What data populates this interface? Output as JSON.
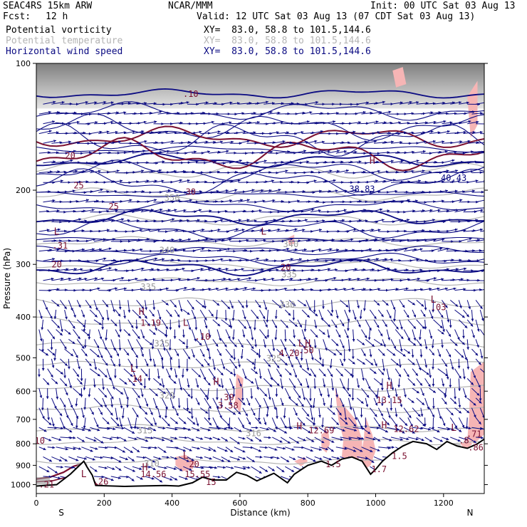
{
  "header": {
    "title": "SEAC4RS 15km ARW",
    "center": "NCAR/MMM",
    "init": "Init: 00 UTC Sat 03 Aug 13",
    "fcst_label": "Fcst:",
    "fcst_value": "12 h",
    "valid": "Valid: 12 UTC Sat 03 Aug 13 (07 CDT Sat 03 Aug 13)",
    "fields": [
      {
        "name": "Potential vorticity",
        "xy": "XY=  83.0, 58.8 to 101.5,144.6"
      },
      {
        "name": "Potential temperature",
        "xy": "XY=  83.0, 58.8 to 101.5,144.6"
      },
      {
        "name": "Horizontal wind speed",
        "xy": "XY=  83.0, 58.8 to 101.5,144.6"
      }
    ]
  },
  "colors": {
    "pv": "#7a1030",
    "theta": "#b4b4b4",
    "wind": "#0a0a82",
    "shade": "#f6b5b5",
    "terrain": "#000000"
  },
  "chart_data": {
    "type": "cross-section",
    "xlabel": "Distance (km)",
    "ylabel": "Pressure (hPa)",
    "x_end_labels": {
      "left": "S",
      "right": "N"
    },
    "xlim": [
      0,
      1320
    ],
    "ylim": [
      1050,
      100
    ],
    "y_scale": "log",
    "x_ticks": [
      0,
      200,
      400,
      600,
      800,
      1000,
      1200
    ],
    "y_ticks": [
      100,
      200,
      300,
      400,
      500,
      600,
      700,
      800,
      900,
      1000
    ],
    "theta_contours": [
      {
        "label": "310",
        "x": 340,
        "p": 905
      },
      {
        "label": "315",
        "x": 320,
        "p": 755
      },
      {
        "label": "316",
        "x": 640,
        "p": 768
      },
      {
        "label": "320",
        "x": 385,
        "p": 625
      },
      {
        "label": "325",
        "x": 370,
        "p": 470
      },
      {
        "label": "325",
        "x": 700,
        "p": 510
      },
      {
        "label": "330",
        "x": 740,
        "p": 380
      },
      {
        "label": "335",
        "x": 330,
        "p": 345
      },
      {
        "label": "335",
        "x": 745,
        "p": 322
      },
      {
        "label": "340",
        "x": 385,
        "p": 282
      },
      {
        "label": "340",
        "x": 750,
        "p": 273
      },
      {
        "label": "350",
        "x": 400,
        "p": 212
      }
    ],
    "pv_labels": [
      {
        "text": "20",
        "x": 100,
        "p": 168
      },
      {
        "text": "25",
        "x": 125,
        "p": 198
      },
      {
        "text": "25",
        "x": 228,
        "p": 222
      },
      {
        "text": "30",
        "x": 455,
        "p": 205
      },
      {
        "text": ".31",
        "x": 70,
        "p": 275
      },
      {
        "text": "20",
        "x": 60,
        "p": 305
      },
      {
        "text": "20",
        "x": 735,
        "p": 310
      },
      {
        "text": ".10",
        "x": 455,
        "p": 120
      },
      {
        "text": "38.83",
        "x": 960,
        "p": 202
      },
      {
        "text": "40.43",
        "x": 1230,
        "p": 190
      },
      {
        "text": "1.19",
        "x": 337,
        "p": 420
      },
      {
        "text": ".10",
        "x": 490,
        "p": 453
      },
      {
        "text": "4.20",
        "x": 745,
        "p": 495
      },
      {
        "text": ".50",
        "x": 795,
        "p": 488
      },
      {
        "text": ".14",
        "x": 290,
        "p": 570
      },
      {
        "text": ".39",
        "x": 560,
        "p": 630
      },
      {
        "text": "3.58",
        "x": 565,
        "p": 660
      },
      {
        "text": "13.15",
        "x": 1040,
        "p": 640
      },
      {
        "text": ".03",
        "x": 1185,
        "p": 385
      },
      {
        "text": "12.69",
        "x": 840,
        "p": 755
      },
      {
        "text": "12.62",
        "x": 1090,
        "p": 750
      },
      {
        "text": ".71",
        "x": 1290,
        "p": 770
      },
      {
        "text": ".8",
        "x": 1260,
        "p": 798
      },
      {
        "text": ".86",
        "x": 1295,
        "p": 830
      },
      {
        "text": "1.5",
        "x": 1070,
        "p": 870
      },
      {
        "text": "1.5",
        "x": 875,
        "p": 910
      },
      {
        "text": "1.7",
        "x": 1010,
        "p": 935
      },
      {
        "text": "20",
        "x": 465,
        "p": 910
      },
      {
        "text": "14.56",
        "x": 345,
        "p": 960
      },
      {
        "text": "15.55",
        "x": 475,
        "p": 960
      },
      {
        "text": "15",
        "x": 515,
        "p": 1003
      },
      {
        "text": ".26",
        "x": 190,
        "p": 1000
      },
      {
        "text": ".21",
        "x": 30,
        "p": 1015
      },
      {
        "text": "10",
        "x": 10,
        "p": 800
      }
    ],
    "highs_lows": [
      {
        "text": "H",
        "x": 310,
        "p": 395
      },
      {
        "text": "L",
        "x": 440,
        "p": 420
      },
      {
        "text": "L",
        "x": 285,
        "p": 540
      },
      {
        "text": "H",
        "x": 530,
        "p": 580
      },
      {
        "text": "L",
        "x": 780,
        "p": 470
      },
      {
        "text": "H",
        "x": 800,
        "p": 470
      },
      {
        "text": "H",
        "x": 990,
        "p": 173
      },
      {
        "text": "L",
        "x": 1170,
        "p": 370
      },
      {
        "text": "L",
        "x": 60,
        "p": 255
      },
      {
        "text": "L",
        "x": 670,
        "p": 255
      },
      {
        "text": "H",
        "x": 1040,
        "p": 592
      },
      {
        "text": "H",
        "x": 775,
        "p": 740
      },
      {
        "text": "H",
        "x": 1025,
        "p": 735
      },
      {
        "text": "L",
        "x": 1230,
        "p": 745
      },
      {
        "text": "L",
        "x": 440,
        "p": 868
      },
      {
        "text": "H",
        "x": 320,
        "p": 925
      },
      {
        "text": "L",
        "x": 140,
        "p": 960
      }
    ],
    "terrain_surface": [
      [
        0,
        1008
      ],
      [
        60,
        1000
      ],
      [
        100,
        945
      ],
      [
        140,
        880
      ],
      [
        150,
        910
      ],
      [
        165,
        950
      ],
      [
        175,
        1005
      ],
      [
        260,
        1010
      ],
      [
        300,
        1008
      ],
      [
        380,
        1005
      ],
      [
        420,
        1008
      ],
      [
        460,
        990
      ],
      [
        490,
        960
      ],
      [
        520,
        975
      ],
      [
        560,
        975
      ],
      [
        590,
        935
      ],
      [
        620,
        950
      ],
      [
        650,
        980
      ],
      [
        700,
        940
      ],
      [
        740,
        990
      ],
      [
        760,
        945
      ],
      [
        800,
        900
      ],
      [
        840,
        880
      ],
      [
        870,
        900
      ],
      [
        900,
        870
      ],
      [
        930,
        860
      ],
      [
        960,
        880
      ],
      [
        985,
        945
      ],
      [
        1000,
        920
      ],
      [
        1020,
        880
      ],
      [
        1050,
        840
      ],
      [
        1080,
        810
      ],
      [
        1110,
        790
      ],
      [
        1150,
        800
      ],
      [
        1180,
        825
      ],
      [
        1210,
        790
      ],
      [
        1240,
        810
      ],
      [
        1270,
        820
      ],
      [
        1300,
        800
      ],
      [
        1320,
        780
      ]
    ]
  }
}
